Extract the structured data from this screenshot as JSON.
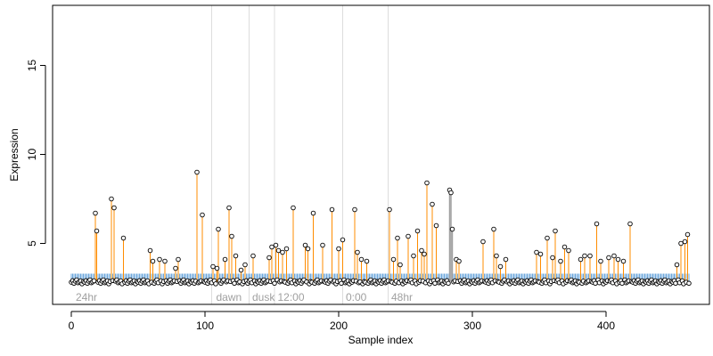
{
  "chart_data": {
    "type": "scatter",
    "title": "",
    "xlabel": "Sample index",
    "ylabel": "Expression",
    "xlim": [
      -10,
      470
    ],
    "ylim": [
      2.0,
      19.0
    ],
    "x_ticks": [
      0,
      100,
      200,
      300,
      400
    ],
    "y_ticks": [
      5,
      10,
      15
    ],
    "grid": false,
    "legend": "none",
    "baseline": 2.85,
    "band_top": 3.3,
    "region_lines": [
      105,
      133,
      152,
      203,
      237
    ],
    "region_labels": [
      {
        "x": 2,
        "text": "24hr"
      },
      {
        "x": 107,
        "text": "dawn"
      },
      {
        "x": 134,
        "text": "dusk"
      },
      {
        "x": 153,
        "text": "12:00"
      },
      {
        "x": 204,
        "text": "0:00"
      },
      {
        "x": 238,
        "text": "48hr"
      }
    ],
    "colors": {
      "spike": "#ff8c00",
      "highlight": "#a0a0a0",
      "band": "#6fa8dc",
      "points": "#000000",
      "region_line": "#dddddd"
    },
    "highlight_x": [
      283,
      284,
      285
    ],
    "highlight_y": [
      8.0,
      7.85,
      5.8
    ],
    "spike_x": [
      18,
      19,
      30,
      32,
      39,
      59,
      61,
      66,
      70,
      78,
      80,
      94,
      98,
      106,
      109,
      110,
      115,
      118,
      120,
      123,
      127,
      130,
      136,
      148,
      150,
      153,
      155,
      158,
      161,
      166,
      175,
      177,
      181,
      188,
      195,
      200,
      203,
      212,
      214,
      217,
      221,
      238,
      241,
      244,
      246,
      252,
      256,
      259,
      262,
      264,
      266,
      270,
      273,
      288,
      290,
      308,
      316,
      318,
      321,
      325,
      348,
      351,
      356,
      360,
      362,
      366,
      369,
      372,
      381,
      384,
      388,
      393,
      396,
      402,
      406,
      409,
      413,
      418,
      453,
      456,
      459,
      461
    ],
    "spike_y": [
      6.7,
      5.7,
      7.5,
      7.0,
      5.3,
      4.6,
      4.0,
      4.1,
      4.0,
      3.6,
      4.1,
      9.0,
      6.6,
      3.7,
      3.6,
      5.8,
      4.1,
      7.0,
      5.4,
      4.3,
      3.5,
      3.8,
      4.3,
      4.2,
      4.8,
      4.9,
      4.6,
      4.5,
      4.7,
      7.0,
      4.9,
      4.7,
      6.7,
      4.9,
      6.9,
      4.7,
      5.2,
      6.9,
      4.5,
      4.1,
      4.0,
      6.9,
      4.1,
      5.3,
      3.8,
      5.4,
      4.3,
      5.7,
      4.6,
      4.4,
      8.4,
      7.2,
      6.0,
      4.1,
      4.0,
      5.1,
      5.8,
      4.3,
      3.7,
      4.1,
      4.5,
      4.4,
      5.3,
      4.2,
      5.7,
      4.0,
      4.8,
      4.6,
      4.1,
      4.3,
      4.3,
      6.1,
      4.0,
      4.2,
      4.3,
      4.1,
      4.0,
      6.1,
      3.8,
      5.0,
      5.1,
      5.5
    ],
    "base_y": [
      2.82,
      2.91,
      2.76,
      2.88,
      2.95,
      2.79,
      2.84,
      2.9,
      2.73,
      2.86
    ]
  }
}
